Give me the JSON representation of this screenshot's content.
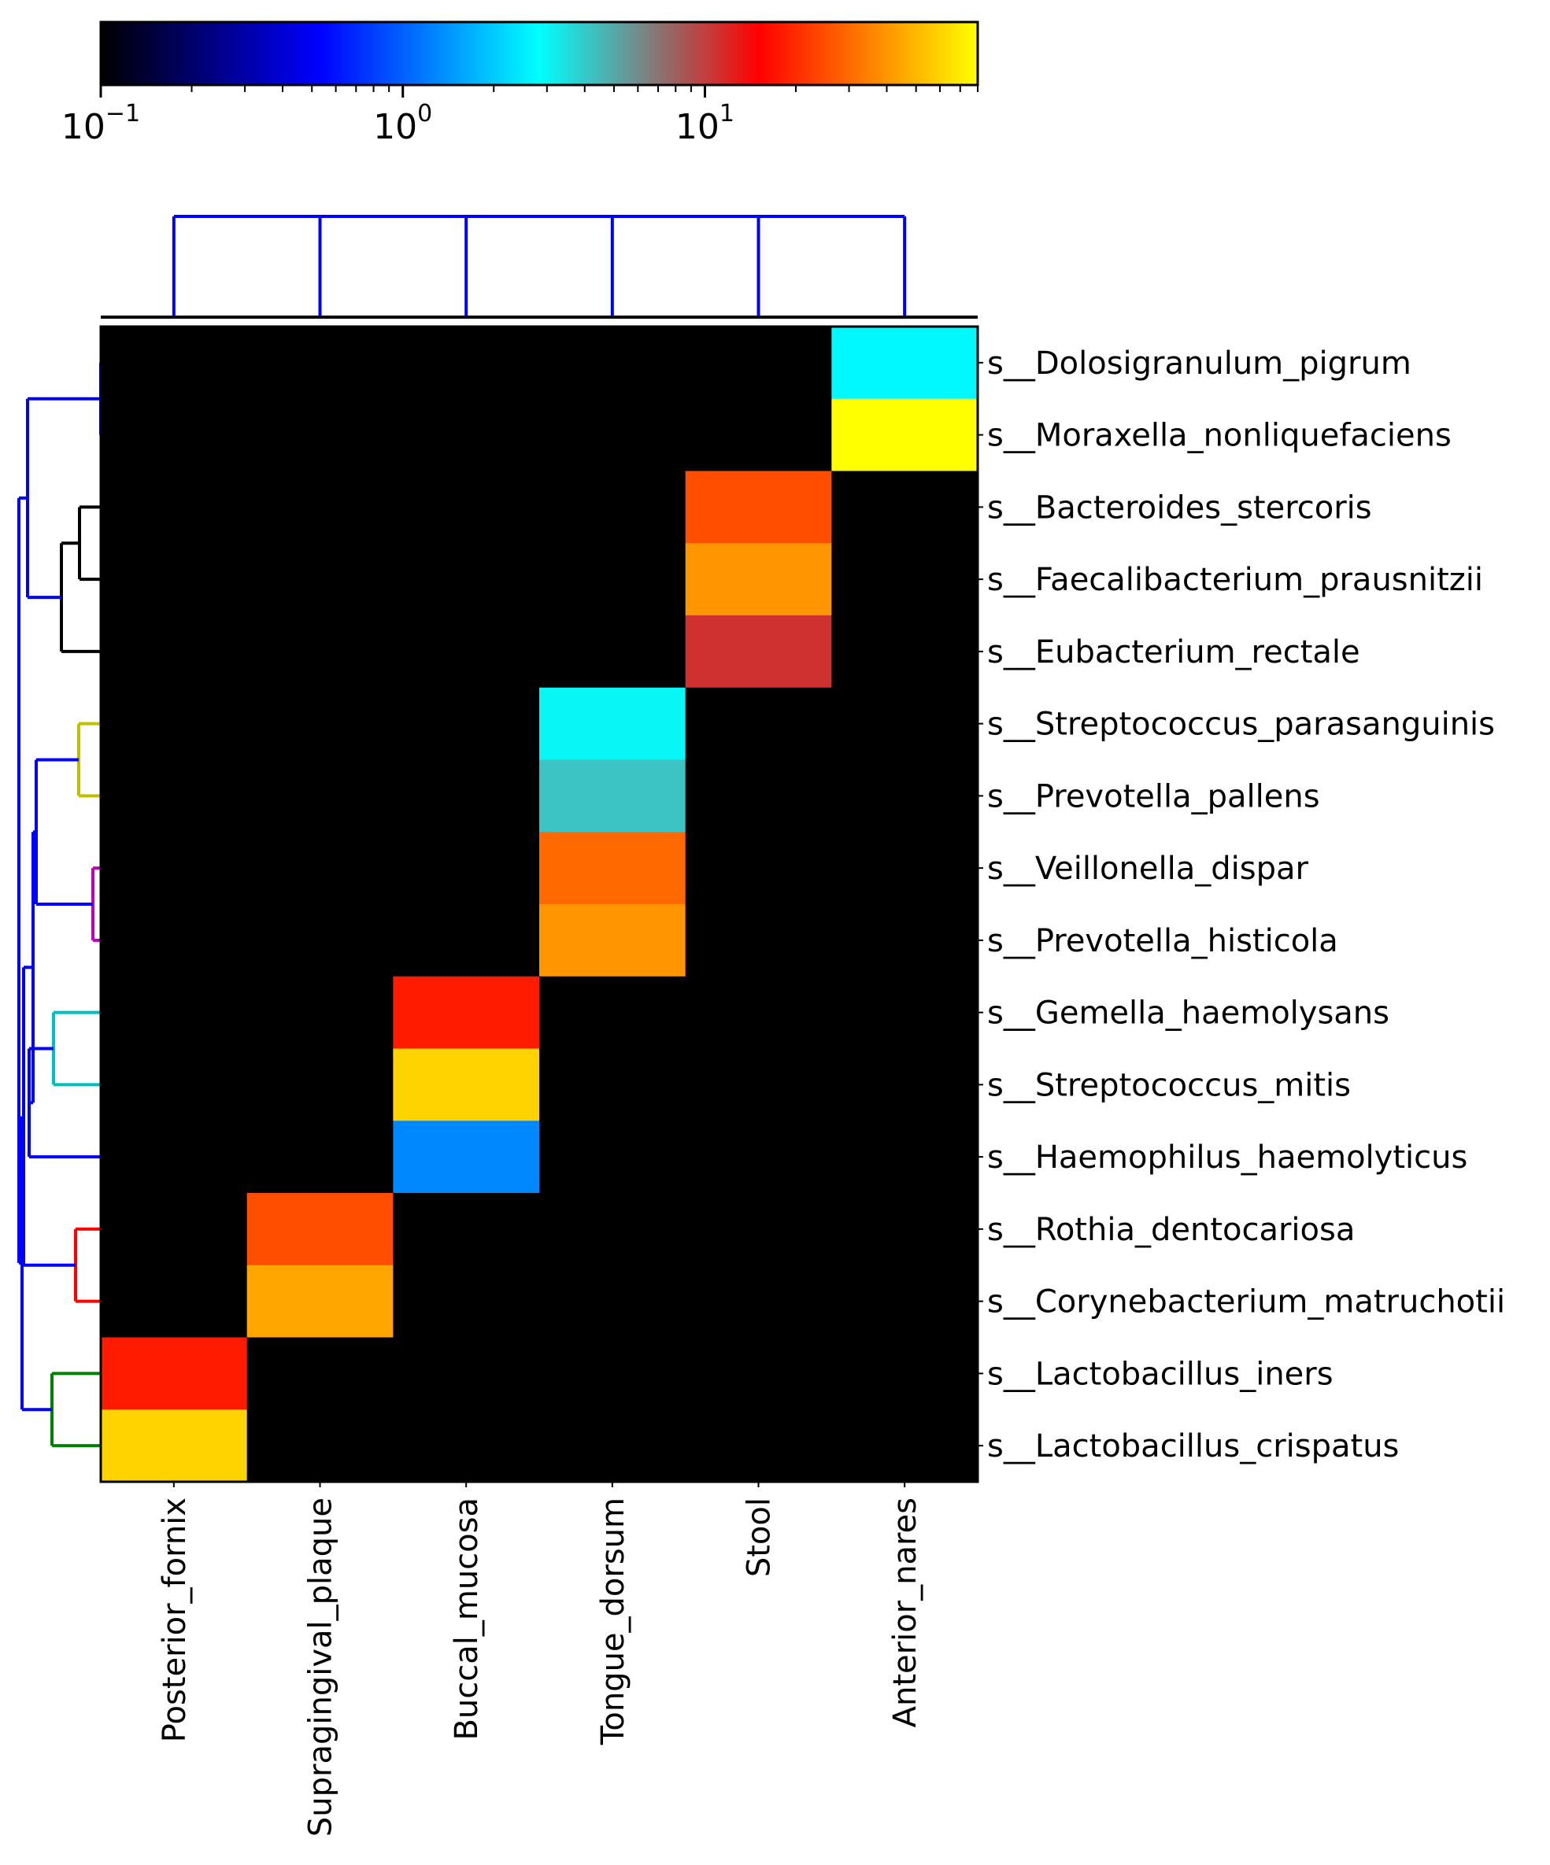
{
  "chart_data": {
    "type": "heatmap",
    "title": "",
    "xlabel": "",
    "ylabel": "",
    "color_scale": "log",
    "colormap": [
      "#000000",
      "#0000ff",
      "#00ffff",
      "#ff0000",
      "#ffff00"
    ],
    "vmin": 0.1,
    "vmax": 80,
    "colorbar_ticks": [
      {
        "value": 0.1,
        "base": "10",
        "exp": "−1"
      },
      {
        "value": 1,
        "base": "10",
        "exp": "0"
      },
      {
        "value": 10,
        "base": "10",
        "exp": "1"
      }
    ],
    "columns": [
      "Posterior_fornix",
      "Supragingival_plaque",
      "Buccal_mucosa",
      "Tongue_dorsum",
      "Stool",
      "Anterior_nares"
    ],
    "rows": [
      "s__Dolosigranulum_pigrum",
      "s__Moraxella_nonliquefaciens",
      "s__Bacteroides_stercoris",
      "s__Faecalibacterium_prausnitzii",
      "s__Eubacterium_rectale",
      "s__Streptococcus_parasanguinis",
      "s__Prevotella_pallens",
      "s__Veillonella_dispar",
      "s__Prevotella_histicola",
      "s__Gemella_haemolysans",
      "s__Streptococcus_mitis",
      "s__Haemophilus_haemolyticus",
      "s__Rothia_dentocariosa",
      "s__Corynebacterium_matruchotii",
      "s__Lactobacillus_iners",
      "s__Lactobacillus_crispatus"
    ],
    "values": [
      [
        0.1,
        0.1,
        0.1,
        0.1,
        0.1,
        2.7
      ],
      [
        0.1,
        0.1,
        0.1,
        0.1,
        0.1,
        80
      ],
      [
        0.1,
        0.1,
        0.1,
        0.1,
        25,
        0.1
      ],
      [
        0.1,
        0.1,
        0.1,
        0.1,
        40,
        0.1
      ],
      [
        0.1,
        0.1,
        0.1,
        0.1,
        11,
        0.1
      ],
      [
        0.1,
        0.1,
        0.1,
        3.0,
        0.1,
        0.1
      ],
      [
        0.1,
        0.1,
        0.1,
        4.2,
        0.1,
        0.1
      ],
      [
        0.1,
        0.1,
        0.1,
        30,
        0.1,
        0.1
      ],
      [
        0.1,
        0.1,
        0.1,
        40,
        0.1,
        0.1
      ],
      [
        0.1,
        0.1,
        18,
        0.1,
        0.1,
        0.1
      ],
      [
        0.1,
        0.1,
        60,
        0.1,
        0.1,
        0.1
      ],
      [
        0.1,
        0.1,
        1.3,
        0.1,
        0.1,
        0.1
      ],
      [
        0.1,
        25,
        0.1,
        0.1,
        0.1,
        0.1
      ],
      [
        0.1,
        45,
        0.1,
        0.1,
        0.1,
        0.1
      ],
      [
        18,
        0.1,
        0.1,
        0.1,
        0.1,
        0.1
      ],
      [
        60,
        0.1,
        0.1,
        0.1,
        0.1,
        0.1
      ]
    ],
    "row_dendrogram": {
      "links": [
        {
          "rows": [
            0,
            1
          ],
          "color": "#0000ff"
        },
        {
          "rows": [
            2,
            3
          ],
          "color": "#000000"
        },
        {
          "rows": [
            2.5,
            4
          ],
          "color": "#000000"
        },
        {
          "rows": [
            5,
            6
          ],
          "color": "#bfbf00"
        },
        {
          "rows": [
            7,
            8
          ],
          "color": "#bf00bf"
        },
        {
          "rows": [
            5.5,
            7.5
          ],
          "color": "#0000ff"
        },
        {
          "rows": [
            9,
            10
          ],
          "color": "#00bfbf"
        },
        {
          "rows": [
            9.5,
            11
          ],
          "color": "#0000ff"
        },
        {
          "rows": [
            12,
            13
          ],
          "color": "#ff0000"
        },
        {
          "rows": [
            14,
            15
          ],
          "color": "#008000"
        },
        {
          "rows": [
            0.5,
            3.25
          ],
          "color": "#0000ff"
        },
        {
          "rows": [
            6.5,
            10.25
          ],
          "color": "#0000ff"
        },
        {
          "rows": [
            8.375,
            12.5
          ],
          "color": "#0000ff"
        },
        {
          "rows": [
            10.4375,
            14.5
          ],
          "color": "#0000ff"
        },
        {
          "rows": [
            1.875,
            12.46875
          ],
          "color": "#0000ff"
        }
      ]
    },
    "column_dendrogram": {
      "color": "#0000ff"
    }
  }
}
